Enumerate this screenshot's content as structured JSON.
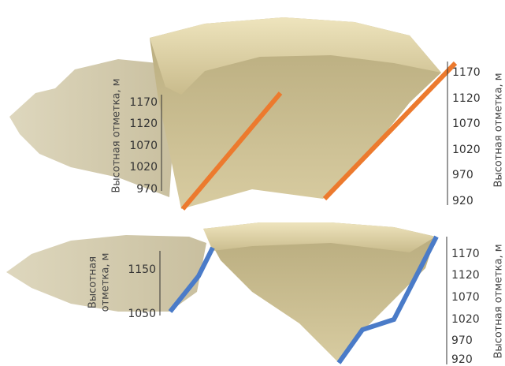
{
  "top_panel": {
    "left_axis": {
      "label": "Высотная отметка, м",
      "ticks": [
        "1170",
        "1120",
        "1070",
        "1020",
        "970"
      ]
    },
    "right_axis": {
      "label": "Высотная отметка, м",
      "ticks": [
        "1170",
        "1120",
        "1070",
        "1020",
        "970",
        "920"
      ]
    }
  },
  "bottom_panel": {
    "left_axis": {
      "label_lines": [
        "Высотная",
        "отметка, м"
      ],
      "ticks": [
        "1150",
        "1050"
      ]
    },
    "right_axis": {
      "label": "Высотная отметка, м",
      "ticks": [
        "1170",
        "1120",
        "1070",
        "1020",
        "970",
        "920"
      ]
    }
  }
}
